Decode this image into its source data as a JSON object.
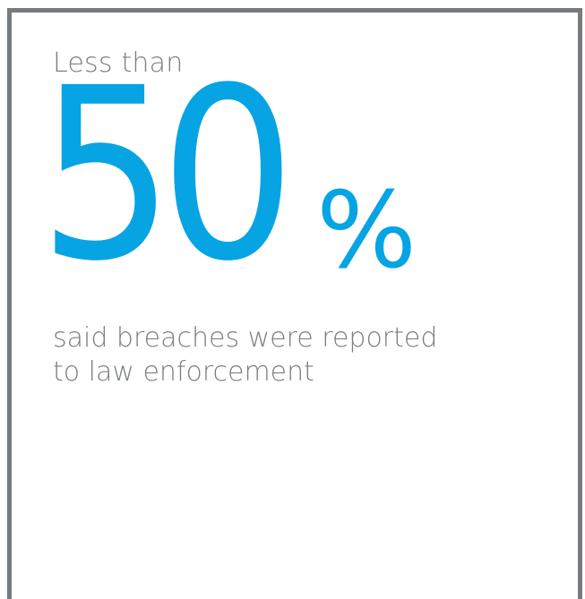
{
  "stat_card": {
    "lead": "Less than",
    "value": "50",
    "unit": "%",
    "caption_lines": [
      "said breaches were reported",
      "to law enforcement"
    ],
    "colors": {
      "accent": "#06a4e3",
      "text": "#7a7f84",
      "border": "#767b80",
      "background": "#ffffff"
    }
  }
}
